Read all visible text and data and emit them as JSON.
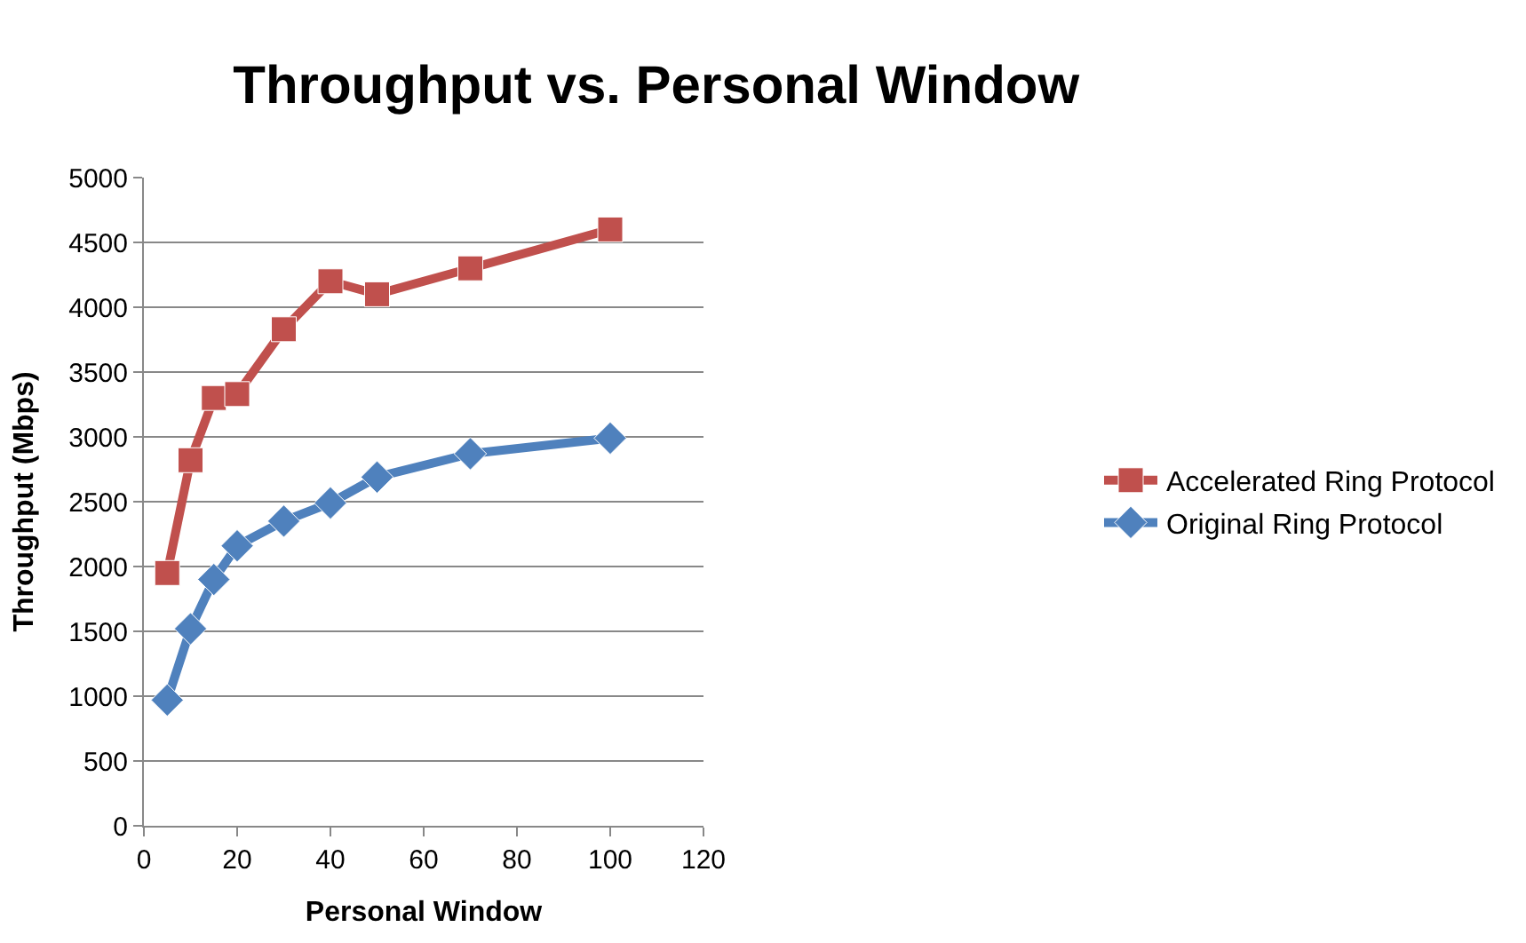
{
  "chart_data": {
    "type": "line",
    "title": "Throughput vs. Personal Window",
    "xlabel": "Personal Window",
    "ylabel": "Throughput (Mbps)",
    "x": [
      5,
      10,
      15,
      20,
      30,
      40,
      50,
      70,
      100
    ],
    "series": [
      {
        "name": "Accelerated Ring Protocol",
        "color": "#c0504d",
        "marker": "square",
        "values": [
          1950,
          2820,
          3300,
          3330,
          3830,
          4200,
          4100,
          4300,
          4600
        ]
      },
      {
        "name": "Original Ring Protocol",
        "color": "#4f81bd",
        "marker": "diamond",
        "values": [
          970,
          1520,
          1900,
          2160,
          2350,
          2490,
          2690,
          2870,
          2990
        ]
      }
    ],
    "xlim": [
      0,
      120
    ],
    "xticks": [
      0,
      20,
      40,
      60,
      80,
      100,
      120
    ],
    "ylim": [
      0,
      5000
    ],
    "yticks": [
      0,
      500,
      1000,
      1500,
      2000,
      2500,
      3000,
      3500,
      4000,
      4500,
      5000
    ],
    "grid": "y",
    "legend": "right",
    "line_style": "solid"
  }
}
